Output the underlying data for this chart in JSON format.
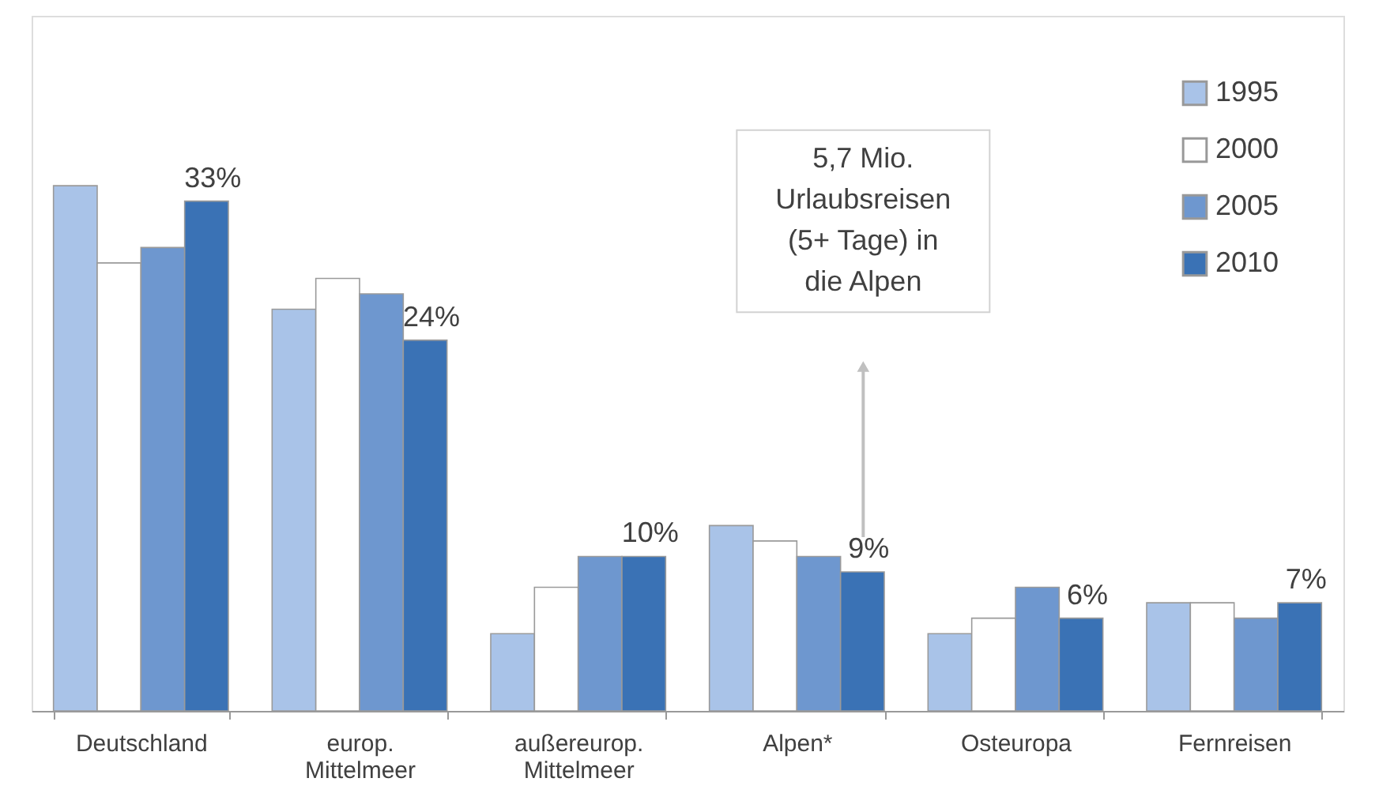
{
  "chart_data": {
    "type": "bar",
    "categories": [
      "Deutschland",
      "europ. Mittelmeer",
      "außereurop. Mittelmeer",
      "Alpen*",
      "Osteuropa",
      "Fernreisen"
    ],
    "series": [
      {
        "name": "1995",
        "color": "#a9c3e8",
        "values": [
          34,
          26,
          5,
          12,
          5,
          7
        ]
      },
      {
        "name": "2000",
        "color": "#ffffff",
        "values": [
          29,
          28,
          8,
          11,
          6,
          7
        ]
      },
      {
        "name": "2005",
        "color": "#6e97cf",
        "values": [
          30,
          27,
          10,
          10,
          8,
          6
        ]
      },
      {
        "name": "2010",
        "color": "#3a72b5",
        "values": [
          33,
          24,
          10,
          9,
          6,
          7
        ],
        "value_labels": [
          "33%",
          "24%",
          "10%",
          "9%",
          "6%",
          "7%"
        ]
      }
    ],
    "ylim": [
      0,
      45
    ],
    "annotations": [
      "5,7 Mio. Urlaubsreisen (5+ Tage) in die Alpen"
    ],
    "legend": "top right",
    "tick_labels": "x"
  }
}
